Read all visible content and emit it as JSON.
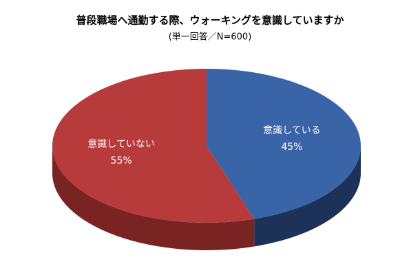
{
  "chart_data": {
    "type": "pie",
    "title": "普段職場へ通勤する際、ウォーキングを意識していますか",
    "subtitle": "(単一回答／N=600)",
    "categories": [
      "意識している",
      "意識していない"
    ],
    "values": [
      45,
      55
    ],
    "value_labels": [
      "45%",
      "55%"
    ],
    "colors": [
      "#3a64a8",
      "#b83b3b"
    ],
    "side_colors": [
      "#1d3258",
      "#7a2323"
    ]
  }
}
